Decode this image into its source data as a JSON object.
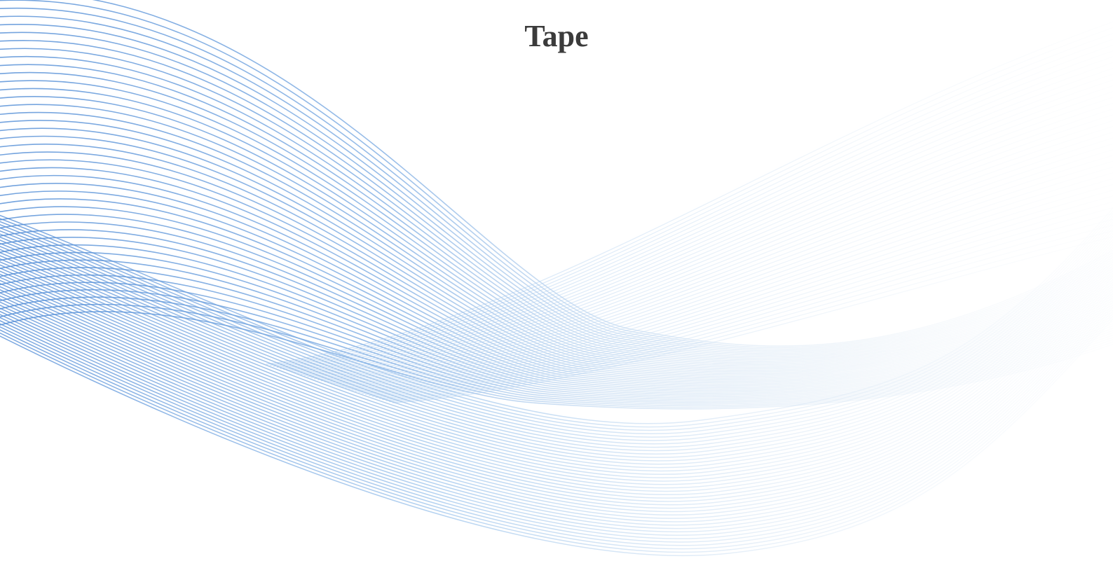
{
  "cover": {
    "title": "Tape",
    "wave": {
      "icon": "blue-wave-ribbon",
      "colors": {
        "deep": "#5b93d8",
        "mid": "#9cc3ec",
        "light": "#dbe8f4",
        "fade": "#f2f6fa"
      }
    }
  }
}
